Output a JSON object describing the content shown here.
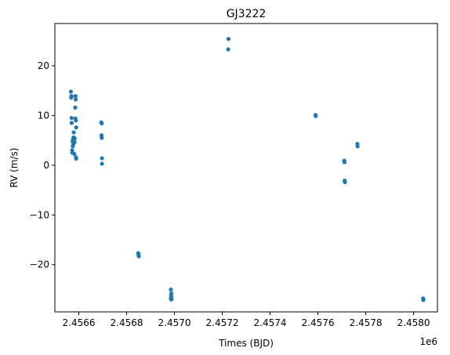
{
  "chart_data": {
    "type": "scatter",
    "title": "GJ3222",
    "xlabel": "Times (BJD)",
    "ylabel": "RV (m/s)",
    "x_offset_label": "1e6",
    "xlim": [
      2.4565,
      2.4581
    ],
    "ylim": [
      -29.5,
      28.5
    ],
    "xticks": [
      2.4566,
      2.4568,
      2.457,
      2.4572,
      2.4574,
      2.4576,
      2.4578,
      2.458
    ],
    "xtick_labels": [
      "2.4566",
      "2.4568",
      "2.4570",
      "2.4572",
      "2.4574",
      "2.4576",
      "2.4578",
      "2.4580"
    ],
    "yticks": [
      -20,
      -10,
      0,
      10,
      20
    ],
    "ytick_labels": [
      "−20",
      "−10",
      "0",
      "10",
      "20"
    ],
    "grid": false,
    "color": "#1f77b4",
    "series": [
      {
        "points": [
          [
            2.456567,
            14.8
          ],
          [
            2.456568,
            13.6
          ],
          [
            2.456569,
            13.9
          ],
          [
            2.45657,
            9.5
          ],
          [
            2.45657,
            8.5
          ],
          [
            2.456572,
            3.0
          ],
          [
            2.456573,
            2.5
          ],
          [
            2.456574,
            4.8
          ],
          [
            2.456575,
            3.8
          ],
          [
            2.456576,
            5.2
          ],
          [
            2.456577,
            4.2
          ],
          [
            2.456578,
            5.6
          ],
          [
            2.456579,
            6.6
          ],
          [
            2.45658,
            5.0
          ],
          [
            2.456581,
            2.3
          ],
          [
            2.456582,
            4.6
          ],
          [
            2.456583,
            5.4
          ],
          [
            2.456585,
            11.6
          ],
          [
            2.456586,
            13.9
          ],
          [
            2.456587,
            13.2
          ],
          [
            2.456586,
            9.4
          ],
          [
            2.456588,
            9.0
          ],
          [
            2.456589,
            7.6
          ],
          [
            2.456588,
            1.6
          ],
          [
            2.456589,
            1.3
          ],
          [
            2.456694,
            8.6
          ],
          [
            2.456696,
            8.4
          ],
          [
            2.456695,
            6.0
          ],
          [
            2.456696,
            5.5
          ],
          [
            2.456697,
            1.4
          ],
          [
            2.456697,
            0.3
          ],
          [
            2.456849,
            -17.7
          ],
          [
            2.45685,
            -18.0
          ],
          [
            2.456851,
            -18.3
          ],
          [
            2.456985,
            -25.0
          ],
          [
            2.456987,
            -25.8
          ],
          [
            2.456986,
            -26.3
          ],
          [
            2.456987,
            -26.6
          ],
          [
            2.456985,
            -26.8
          ],
          [
            2.456988,
            -26.9
          ],
          [
            2.456987,
            -27.0
          ],
          [
            2.457226,
            25.4
          ],
          [
            2.457225,
            23.3
          ],
          [
            2.45759,
            10.1
          ],
          [
            2.457591,
            9.9
          ],
          [
            2.45771,
            0.9
          ],
          [
            2.457711,
            0.6
          ],
          [
            2.457712,
            -3.1
          ],
          [
            2.457713,
            -3.4
          ],
          [
            2.457765,
            4.3
          ],
          [
            2.457766,
            3.8
          ],
          [
            2.45804,
            -26.8
          ],
          [
            2.458041,
            -27.1
          ]
        ]
      }
    ]
  }
}
